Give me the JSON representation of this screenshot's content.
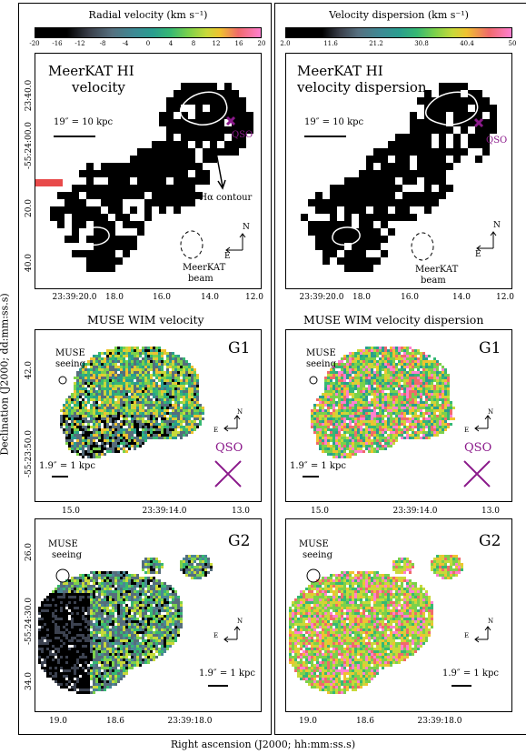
{
  "figure": {
    "x_axis_label": "Right ascension (J2000; hh:mm:ss.s)",
    "y_axis_label": "Declination (J2000; dd:mm:ss.s)"
  },
  "colorbars": {
    "velocity": {
      "title": "Radial velocity (km s⁻¹)",
      "ticks": [
        "-20",
        "-16",
        "-12",
        "-8",
        "-4",
        "0",
        "4",
        "8",
        "12",
        "16",
        "20"
      ]
    },
    "dispersion": {
      "title": "Velocity dispersion (km s⁻¹)",
      "ticks": [
        "2.0",
        "11.6",
        "21.2",
        "30.8",
        "40.4",
        "50"
      ]
    }
  },
  "panels": {
    "hi_vel": {
      "title_l1": "MeerKAT HI",
      "title_l2": "velocity",
      "scale": "19″ = 10 kpc",
      "annotation": "3σ Hα contour",
      "qso": "QSO",
      "beam_l1": "MeerKAT",
      "beam_l2": "beam",
      "compass_n": "N",
      "compass_e": "E",
      "yticks": [
        "23:40.0",
        "-55:24:00.0",
        "20.0",
        "40.0"
      ],
      "xticks": [
        "23:39:20.0",
        "18.0",
        "16.0",
        "14.0",
        "12.0"
      ]
    },
    "hi_disp": {
      "title_l1": "MeerKAT HI",
      "title_l2": "velocity dispersion",
      "scale": "19″ = 10 kpc",
      "qso": "QSO",
      "beam_l1": "MeerKAT",
      "beam_l2": "beam",
      "compass_n": "N",
      "compass_e": "E",
      "xticks": [
        "23:39:20.0",
        "18.0",
        "16.0",
        "14.0",
        "12.0"
      ]
    },
    "muse_vel_title": "MUSE WIM velocity",
    "muse_disp_title": "MUSE WIM velocity dispersion",
    "g1_vel": {
      "label": "G1",
      "seeing_l1": "MUSE",
      "seeing_l2": "seeing",
      "scale": "1.9″ = 1 kpc",
      "qso": "QSO",
      "compass_n": "N",
      "compass_e": "E",
      "yticks": [
        "42.0",
        "-55:23:50.0"
      ],
      "xticks": [
        "15.0",
        "23:39:14.0",
        "13.0"
      ]
    },
    "g1_disp": {
      "label": "G1",
      "seeing_l1": "MUSE",
      "seeing_l2": "seeing",
      "scale": "1.9″ = 1 kpc",
      "qso": "QSO",
      "compass_n": "N",
      "compass_e": "E",
      "xticks": [
        "15.0",
        "23:39:14.0",
        "13.0"
      ]
    },
    "g2_vel": {
      "label": "G2",
      "seeing_l1": "MUSE",
      "seeing_l2": "seeing",
      "scale": "1.9″ = 1 kpc",
      "compass_n": "N",
      "compass_e": "E",
      "yticks": [
        "26.0",
        "-55:24:30.0",
        "34.0"
      ],
      "xticks": [
        "19.0",
        "18.6",
        "23:39:18.0"
      ]
    },
    "g2_disp": {
      "label": "G2",
      "seeing_l1": "MUSE",
      "seeing_l2": "seeing",
      "scale": "1.9″ = 1 kpc",
      "compass_n": "N",
      "compass_e": "E",
      "xticks": [
        "19.0",
        "18.6",
        "23:39:18.0"
      ]
    }
  },
  "colors": {
    "qso": "#8b1a8b",
    "contour": "#ffffff"
  }
}
